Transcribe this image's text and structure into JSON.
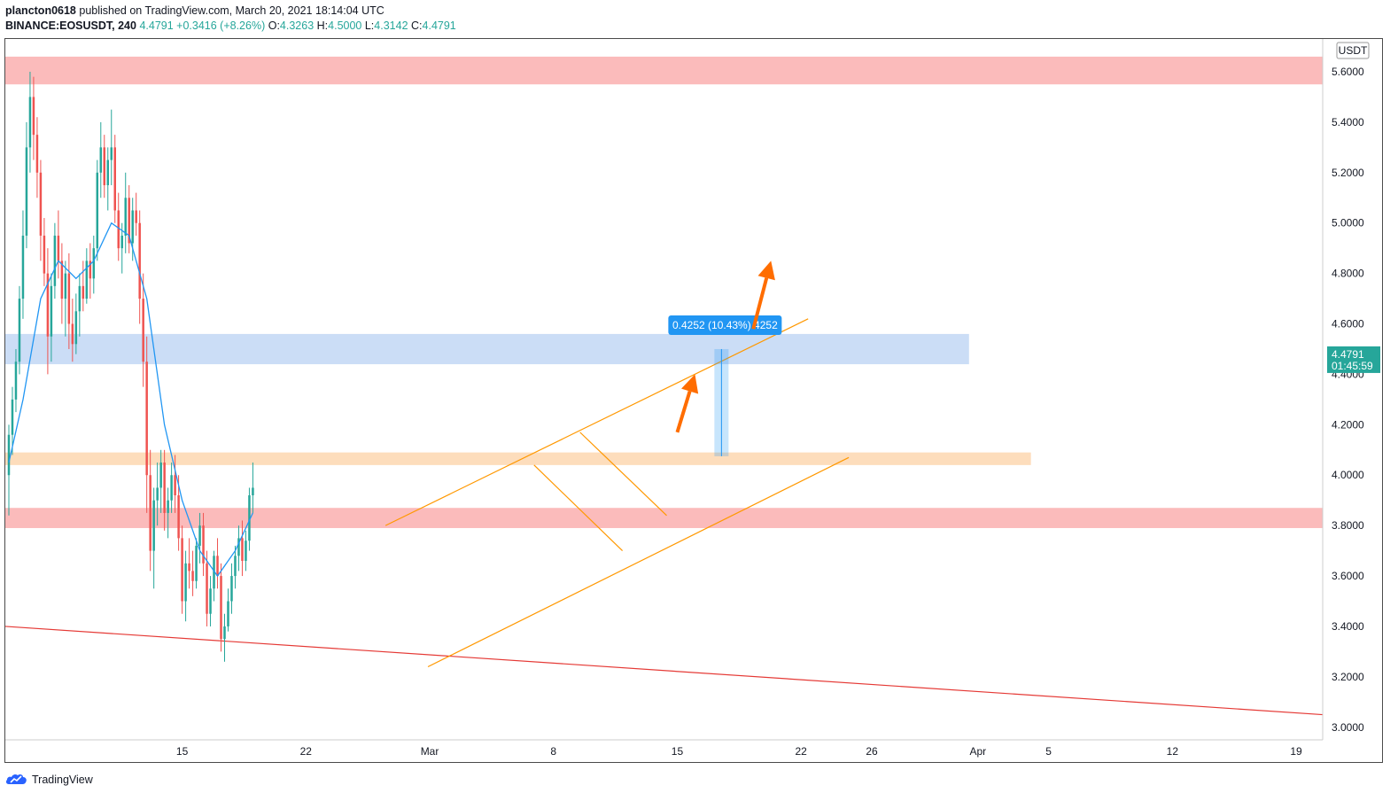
{
  "header": {
    "user": "plancton0618",
    "published": " published on TradingView.com, March 20, 2021 18:14:04 UTC",
    "symbol": "BINANCE:EOSUSDT, 240",
    "last": "4.4791",
    "change": "+0.3416 (+8.26%)",
    "o_label": "O:",
    "o_val": "4.3263",
    "h_label": "H:",
    "h_val": "4.5000",
    "l_label": "L:",
    "l_val": "4.3142",
    "c_label": "C:",
    "c_val": "4.4791"
  },
  "footer": {
    "brand": "TradingView"
  },
  "colors": {
    "up": "#26a69a",
    "down": "#ef5350",
    "ma": "#2196f3",
    "resistance_zone": "#fbb4b4",
    "blue_zone": "#c5d9f5",
    "orange_zone": "#fdd9b5",
    "channel": "#ff9800",
    "trendline": "#e53935",
    "arrow": "#ff6d00",
    "measure": "#2196f3"
  },
  "chart_data": {
    "type": "candlestick",
    "symbol": "EOSUSDT",
    "exchange": "BINANCE",
    "interval": "240",
    "currency_label": "USDT",
    "ylim": [
      2.95,
      5.73
    ],
    "y_ticks": [
      "3.0000",
      "3.2000",
      "3.4000",
      "3.6000",
      "3.8000",
      "4.0000",
      "4.2000",
      "4.4000",
      "4.6000",
      "4.8000",
      "5.0000",
      "5.2000",
      "5.4000",
      "5.6000"
    ],
    "x_ticks": [
      {
        "label": "15",
        "day": 15
      },
      {
        "label": "22",
        "day": 22
      },
      {
        "label": "Mar",
        "day": 29
      },
      {
        "label": "8",
        "day": 36
      },
      {
        "label": "15",
        "day": 43
      },
      {
        "label": "22",
        "day": 50
      },
      {
        "label": "26",
        "day": 54
      },
      {
        "label": "Apr",
        "day": 60
      },
      {
        "label": "5",
        "day": 64
      },
      {
        "label": "12",
        "day": 71
      },
      {
        "label": "19",
        "day": 78
      }
    ],
    "x_axis_note": "day index: Feb 15 = 15 ... Mar 1 = 29, Apr 1 = 60",
    "price_label": {
      "value": "4.4791",
      "countdown": "01:45:59"
    },
    "measure_label": "0.4252 (10.43%) 4252",
    "measure": {
      "day": 45.5,
      "from": 4.075,
      "to": 4.5
    },
    "zones": [
      {
        "name": "top-resistance",
        "from": 5.55,
        "to": 5.66,
        "day_end": null
      },
      {
        "name": "blue-resistance",
        "from": 4.44,
        "to": 4.56,
        "day_end": 59.5
      },
      {
        "name": "orange-support",
        "from": 4.04,
        "to": 4.09,
        "day_end": 63
      },
      {
        "name": "red-support",
        "from": 3.79,
        "to": 3.87,
        "day_end": null
      }
    ],
    "channel_lines": [
      {
        "name": "channel-upper",
        "d1": 26.5,
        "p1": 3.8,
        "d2": 50.4,
        "p2": 4.62
      },
      {
        "name": "channel-lower",
        "d1": 28.9,
        "p1": 3.24,
        "d2": 52.7,
        "p2": 4.07
      },
      {
        "name": "flag-upper",
        "d1": 37.5,
        "p1": 4.17,
        "d2": 42.4,
        "p2": 3.84
      },
      {
        "name": "flag-lower",
        "d1": 34.9,
        "p1": 4.04,
        "d2": 39.9,
        "p2": 3.7
      }
    ],
    "trendline": {
      "d1": 5,
      "p1": 3.4,
      "d2": 79.5,
      "p2": 3.05
    },
    "arrows": [
      {
        "name": "arrow-small",
        "d1": 43.0,
        "p1": 4.17,
        "d2": 44.0,
        "p2": 4.4
      },
      {
        "name": "arrow-large",
        "d1": 47.3,
        "p1": 4.58,
        "d2": 48.3,
        "p2": 4.85
      }
    ],
    "candles": [
      [
        5.2,
        4.0,
        4.2,
        3.84,
        4.16
      ],
      [
        5.4,
        4.16,
        4.35,
        4.08,
        4.3
      ],
      [
        5.6,
        4.3,
        4.5,
        4.25,
        4.45
      ],
      [
        5.8,
        4.45,
        4.75,
        4.4,
        4.7
      ],
      [
        6.0,
        4.7,
        5.05,
        4.62,
        4.95
      ],
      [
        6.2,
        4.95,
        5.4,
        4.9,
        5.3
      ],
      [
        6.4,
        5.3,
        5.6,
        5.2,
        5.5
      ],
      [
        6.6,
        5.5,
        5.58,
        5.25,
        5.35
      ],
      [
        6.8,
        5.35,
        5.42,
        5.1,
        5.2
      ],
      [
        7.0,
        5.2,
        5.25,
        4.85,
        4.95
      ],
      [
        7.2,
        4.95,
        5.02,
        4.75,
        4.8
      ],
      [
        7.4,
        4.8,
        4.9,
        4.4,
        4.55
      ],
      [
        7.6,
        4.55,
        4.8,
        4.45,
        4.75
      ],
      [
        7.8,
        4.75,
        5.0,
        4.7,
        4.95
      ],
      [
        8.0,
        4.95,
        5.05,
        4.78,
        4.85
      ],
      [
        8.2,
        4.85,
        4.92,
        4.6,
        4.7
      ],
      [
        8.4,
        4.7,
        4.85,
        4.55,
        4.8
      ],
      [
        8.6,
        4.8,
        4.88,
        4.5,
        4.6
      ],
      [
        8.8,
        4.6,
        4.7,
        4.45,
        4.52
      ],
      [
        9.0,
        4.52,
        4.72,
        4.48,
        4.65
      ],
      [
        9.2,
        4.65,
        4.8,
        4.55,
        4.75
      ],
      [
        9.4,
        4.75,
        4.85,
        4.65,
        4.7
      ],
      [
        9.6,
        4.7,
        4.9,
        4.68,
        4.85
      ],
      [
        9.8,
        4.85,
        4.92,
        4.7,
        4.78
      ],
      [
        10.0,
        4.78,
        4.95,
        4.72,
        4.9
      ],
      [
        10.2,
        4.9,
        5.25,
        4.85,
        5.2
      ],
      [
        10.4,
        5.2,
        5.4,
        5.1,
        5.3
      ],
      [
        10.6,
        5.3,
        5.35,
        5.1,
        5.15
      ],
      [
        10.8,
        5.15,
        5.3,
        5.05,
        5.25
      ],
      [
        11.0,
        5.25,
        5.45,
        5.15,
        5.3
      ],
      [
        11.2,
        5.3,
        5.35,
        5.0,
        5.05
      ],
      [
        11.4,
        5.05,
        5.12,
        4.85,
        4.9
      ],
      [
        11.6,
        4.9,
        5.0,
        4.8,
        4.95
      ],
      [
        11.8,
        4.95,
        5.2,
        4.88,
        5.1
      ],
      [
        12.0,
        5.1,
        5.15,
        4.88,
        4.92
      ],
      [
        12.2,
        4.92,
        5.1,
        4.85,
        5.05
      ],
      [
        12.4,
        5.05,
        5.12,
        4.95,
        5.0
      ],
      [
        12.6,
        5.0,
        5.05,
        4.6,
        4.7
      ],
      [
        12.8,
        4.7,
        4.8,
        4.35,
        4.45
      ],
      [
        13.0,
        4.45,
        4.55,
        3.85,
        4.0
      ],
      [
        13.2,
        4.0,
        4.1,
        3.62,
        3.7
      ],
      [
        13.4,
        3.7,
        3.95,
        3.55,
        3.9
      ],
      [
        13.6,
        3.9,
        4.05,
        3.8,
        3.95
      ],
      [
        13.8,
        3.95,
        4.1,
        3.85,
        4.05
      ],
      [
        14.0,
        4.05,
        4.1,
        3.78,
        3.85
      ],
      [
        14.2,
        3.85,
        3.95,
        3.75,
        3.9
      ],
      [
        14.4,
        3.9,
        4.05,
        3.85,
        4.0
      ],
      [
        14.6,
        4.0,
        4.08,
        3.85,
        3.92
      ],
      [
        14.8,
        3.92,
        4.0,
        3.7,
        3.75
      ],
      [
        15.0,
        3.75,
        3.8,
        3.45,
        3.5
      ],
      [
        15.2,
        3.5,
        3.7,
        3.42,
        3.65
      ],
      [
        15.4,
        3.65,
        3.75,
        3.55,
        3.62
      ],
      [
        15.6,
        3.62,
        3.7,
        3.52,
        3.58
      ],
      [
        15.8,
        3.58,
        3.75,
        3.55,
        3.72
      ],
      [
        16.0,
        3.72,
        3.85,
        3.65,
        3.8
      ],
      [
        16.2,
        3.8,
        3.85,
        3.6,
        3.65
      ],
      [
        16.4,
        3.65,
        3.7,
        3.4,
        3.45
      ],
      [
        16.6,
        3.45,
        3.6,
        3.4,
        3.55
      ],
      [
        16.8,
        3.55,
        3.7,
        3.5,
        3.68
      ],
      [
        17.0,
        3.68,
        3.75,
        3.55,
        3.6
      ],
      [
        17.2,
        3.6,
        3.65,
        3.3,
        3.35
      ],
      [
        17.4,
        3.35,
        3.45,
        3.26,
        3.4
      ],
      [
        17.6,
        3.4,
        3.55,
        3.38,
        3.5
      ],
      [
        17.8,
        3.5,
        3.65,
        3.45,
        3.6
      ],
      [
        18.0,
        3.6,
        3.72,
        3.55,
        3.68
      ],
      [
        18.2,
        3.68,
        3.8,
        3.62,
        3.75
      ],
      [
        18.4,
        3.75,
        3.82,
        3.6,
        3.66
      ],
      [
        18.6,
        3.66,
        3.78,
        3.62,
        3.74
      ],
      [
        18.8,
        3.74,
        3.95,
        3.7,
        3.92
      ],
      [
        19.0,
        3.92,
        4.05,
        3.85,
        3.95
      ]
    ],
    "ma_points": [
      [
        5.2,
        4.05
      ],
      [
        6.0,
        4.3
      ],
      [
        7.0,
        4.7
      ],
      [
        8.0,
        4.85
      ],
      [
        9.0,
        4.78
      ],
      [
        10.0,
        4.85
      ],
      [
        11.0,
        5.0
      ],
      [
        12.0,
        4.95
      ],
      [
        13.0,
        4.7
      ],
      [
        14.0,
        4.2
      ],
      [
        15.0,
        3.9
      ],
      [
        16.0,
        3.7
      ],
      [
        17.0,
        3.6
      ],
      [
        18.0,
        3.7
      ],
      [
        19.0,
        3.85
      ]
    ]
  }
}
